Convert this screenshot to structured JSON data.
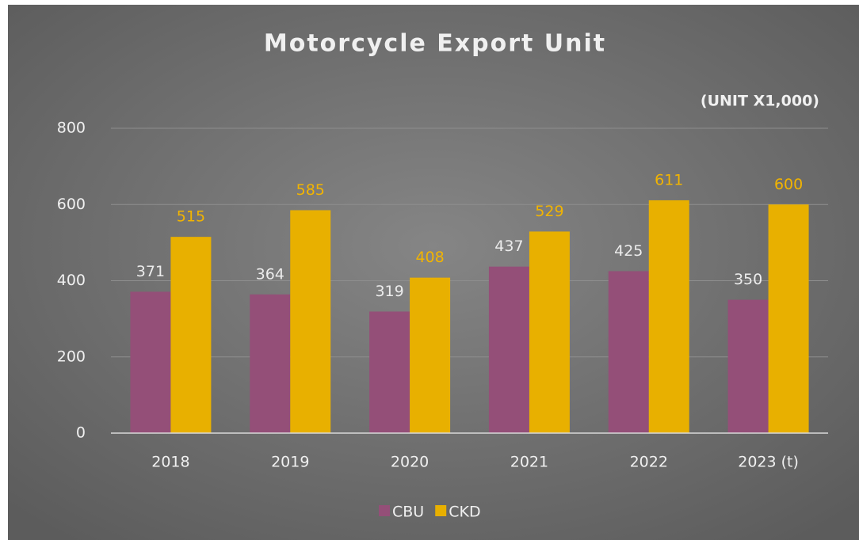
{
  "chart_data": {
    "type": "bar",
    "title": "Motorcycle Export Unit",
    "subtitle": "(UNIT X1,000)",
    "categories": [
      "2018",
      "2019",
      "2020",
      "2021",
      "2022",
      "2023 (t)"
    ],
    "series": [
      {
        "name": "CBU",
        "color": "#944f78",
        "values": [
          371,
          364,
          319,
          437,
          425,
          350
        ]
      },
      {
        "name": "CKD",
        "color": "#e8b000",
        "values": [
          515,
          585,
          408,
          529,
          611,
          600
        ]
      }
    ],
    "ylim": [
      0,
      800
    ],
    "yticks": [
      0,
      200,
      400,
      600,
      800
    ],
    "grid": true,
    "legend": "bottom"
  }
}
